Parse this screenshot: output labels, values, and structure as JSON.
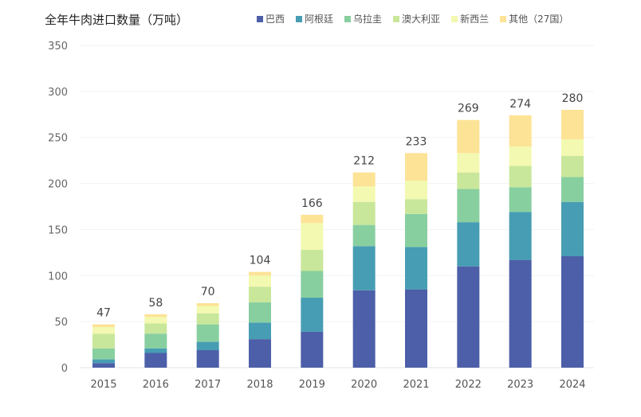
{
  "chart_data": {
    "type": "bar",
    "stacked": true,
    "title": "全年牛肉进口数量（万吨）",
    "xlabel": "",
    "ylabel": "",
    "ylim": [
      0,
      350
    ],
    "yticks": [
      0,
      50,
      100,
      150,
      200,
      250,
      300,
      350
    ],
    "grid": true,
    "legend": "top-right",
    "categories": [
      "2015",
      "2016",
      "2017",
      "2018",
      "2019",
      "2020",
      "2021",
      "2022",
      "2023",
      "2024"
    ],
    "totals": [
      47,
      58,
      70,
      104,
      166,
      212,
      233,
      269,
      274,
      280
    ],
    "series": [
      {
        "name": "巴西",
        "color": "#4c5fa8",
        "values": [
          5,
          16,
          19,
          31,
          39,
          84,
          85,
          110,
          117,
          121
        ]
      },
      {
        "name": "阿根廷",
        "color": "#479db3",
        "values": [
          4,
          5,
          9,
          18,
          37,
          48,
          46,
          48,
          52,
          59
        ]
      },
      {
        "name": "乌拉圭",
        "color": "#88cfa0",
        "values": [
          12,
          16,
          19,
          22,
          29,
          23,
          36,
          36,
          27,
          27
        ]
      },
      {
        "name": "澳大利亚",
        "color": "#c9e79a",
        "values": [
          16,
          11,
          12,
          17,
          23,
          25,
          16,
          18,
          23,
          23
        ]
      },
      {
        "name": "新西兰",
        "color": "#f3f9b0",
        "values": [
          7,
          7,
          8,
          12,
          29,
          17,
          20,
          21,
          21,
          18
        ]
      },
      {
        "name": "其他（27国）",
        "color": "#fde396",
        "values": [
          3,
          3,
          3,
          4,
          9,
          15,
          30,
          36,
          34,
          32
        ]
      }
    ]
  }
}
